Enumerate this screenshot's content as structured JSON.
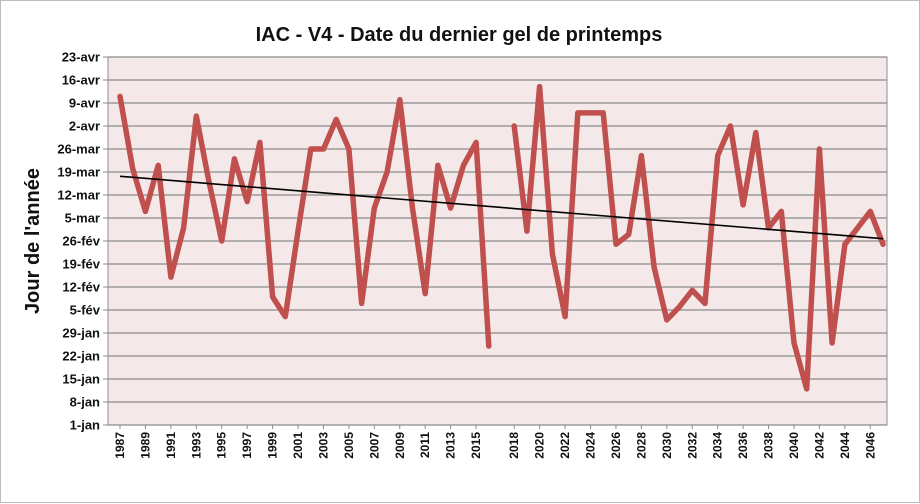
{
  "chart_data": {
    "type": "line",
    "title": "IAC - V4 - Date du dernier gel de printemps",
    "xlabel": "",
    "ylabel": "Jour de l'année",
    "ylim": [
      1,
      113
    ],
    "y_tick_values": [
      1,
      8,
      15,
      22,
      29,
      36,
      43,
      50,
      57,
      64,
      71,
      78,
      85,
      92,
      99,
      106,
      113
    ],
    "y_tick_labels": [
      "1-jan",
      "8-jan",
      "15-jan",
      "22-jan",
      "29-jan",
      "5-fév",
      "12-fév",
      "19-fév",
      "26-fév",
      "5-mar",
      "12-mar",
      "19-mar",
      "26-mar",
      "2-avr",
      "9-avr",
      "16-avr",
      "23-avr"
    ],
    "x_tick_labels": [
      "1987",
      "1989",
      "1991",
      "1993",
      "1995",
      "1997",
      "1999",
      "2001",
      "2003",
      "2005",
      "2007",
      "2009",
      "2011",
      "2013",
      "2015",
      "2018",
      "2020",
      "2022",
      "2024",
      "2026",
      "2028",
      "2030",
      "2032",
      "2034",
      "2036",
      "2038",
      "2040",
      "2042",
      "2044",
      "2046"
    ],
    "grid": true,
    "plot_background": "#f4e8e8",
    "series": [
      {
        "color": "#c0504d",
        "points": [
          [
            1987,
            101
          ],
          [
            1988,
            79
          ],
          [
            1989,
            66
          ],
          [
            1990,
            80
          ],
          [
            1991,
            46
          ],
          [
            1992,
            61
          ],
          [
            1993,
            95
          ],
          [
            1994,
            75
          ],
          [
            1995,
            57
          ],
          [
            1996,
            82
          ],
          [
            1997,
            69
          ],
          [
            1998,
            87
          ],
          [
            1999,
            40
          ],
          [
            2000,
            34
          ],
          [
            2001,
            60
          ],
          [
            2002,
            85
          ],
          [
            2003,
            85
          ],
          [
            2004,
            94
          ],
          [
            2005,
            85
          ],
          [
            2006,
            38
          ],
          [
            2007,
            67
          ],
          [
            2008,
            78
          ],
          [
            2009,
            100
          ],
          [
            2010,
            67
          ],
          [
            2011,
            41
          ],
          [
            2012,
            80
          ],
          [
            2013,
            67
          ],
          [
            2014,
            80
          ],
          [
            2015,
            87
          ],
          [
            2016,
            25
          ],
          [
            2017,
            null
          ],
          [
            2018,
            92
          ],
          [
            2019,
            60
          ],
          [
            2020,
            104
          ],
          [
            2021,
            53
          ],
          [
            2022,
            34
          ],
          [
            2023,
            96
          ],
          [
            2024,
            96
          ],
          [
            2025,
            96
          ],
          [
            2026,
            56
          ],
          [
            2027,
            59
          ],
          [
            2028,
            83
          ],
          [
            2029,
            49
          ],
          [
            2030,
            33
          ],
          [
            2031,
            37
          ],
          [
            2032,
            42
          ],
          [
            2033,
            38
          ],
          [
            2034,
            83
          ],
          [
            2035,
            92
          ],
          [
            2036,
            68
          ],
          [
            2037,
            90
          ],
          [
            2038,
            61
          ],
          [
            2039,
            66
          ],
          [
            2040,
            26
          ],
          [
            2041,
            12
          ],
          [
            2042,
            85
          ],
          [
            2043,
            26
          ],
          [
            2044,
            56
          ],
          [
            2045,
            61
          ],
          [
            2046,
            66
          ],
          [
            2047,
            56
          ]
        ]
      }
    ],
    "trendline": {
      "color": "#000000",
      "x": [
        1987,
        2047
      ],
      "y": [
        76.7,
        57.7
      ]
    }
  }
}
